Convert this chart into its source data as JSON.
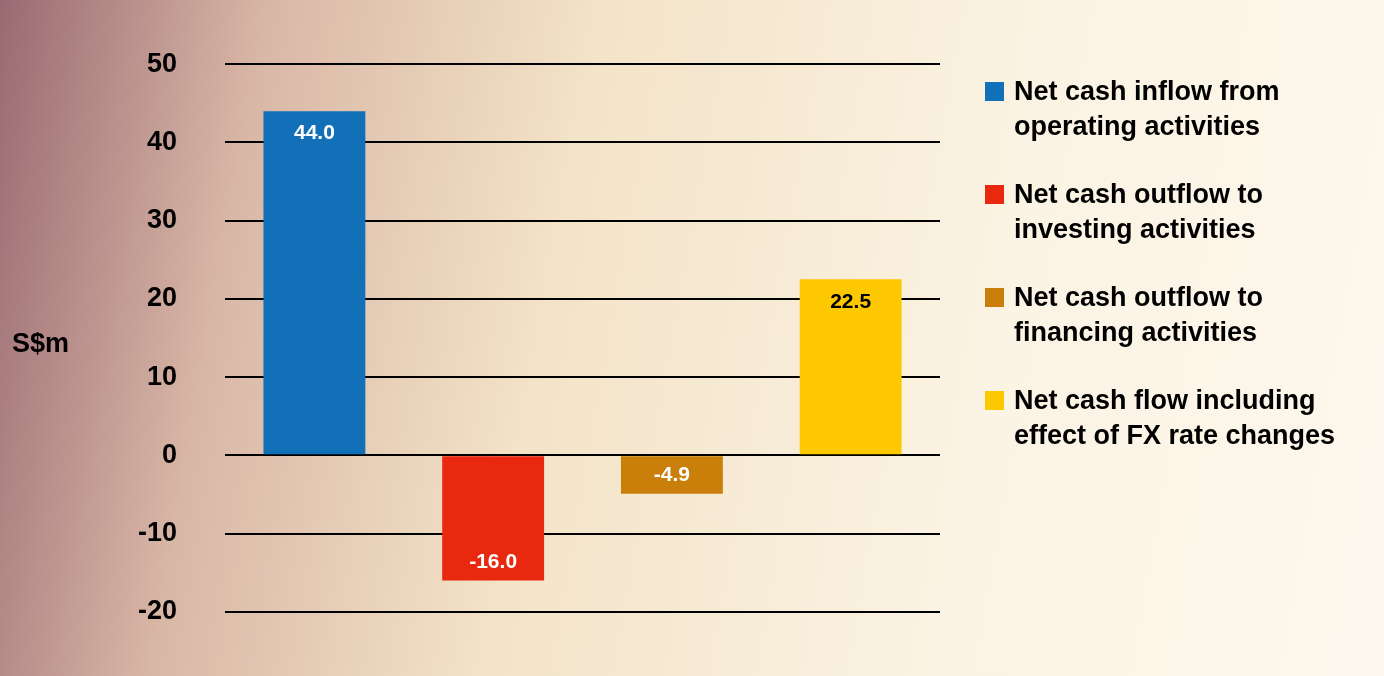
{
  "chart_data": {
    "type": "bar",
    "ylabel": "S$m",
    "categories": [
      null,
      null,
      null,
      null
    ],
    "series": [
      {
        "name": "Net cash inflow from operating activities",
        "color": "#1170b8",
        "values": [
          44.0,
          null,
          null,
          null
        ],
        "value_labels": [
          "44.0",
          null,
          null,
          null
        ]
      },
      {
        "name": "Net cash outflow to investing activities",
        "color": "#e8290f",
        "values": [
          null,
          -16.0,
          null,
          null
        ],
        "value_labels": [
          null,
          "-16.0",
          null,
          null
        ]
      },
      {
        "name": "Net cash outflow to financing activities",
        "color": "#c97f0a",
        "values": [
          null,
          null,
          -4.9,
          null
        ],
        "value_labels": [
          null,
          null,
          "-4.9",
          null
        ]
      },
      {
        "name": "Net cash flow including effect of FX rate changes",
        "color": "#fdc800",
        "values": [
          null,
          null,
          null,
          22.5
        ],
        "value_labels": [
          null,
          null,
          null,
          "22.5"
        ]
      }
    ],
    "ylim": [
      -20,
      50
    ],
    "yticks": [
      -20,
      -10,
      0,
      10,
      20,
      30,
      40,
      50
    ],
    "grid": "y",
    "legend": "right",
    "tick_labels": "y"
  }
}
